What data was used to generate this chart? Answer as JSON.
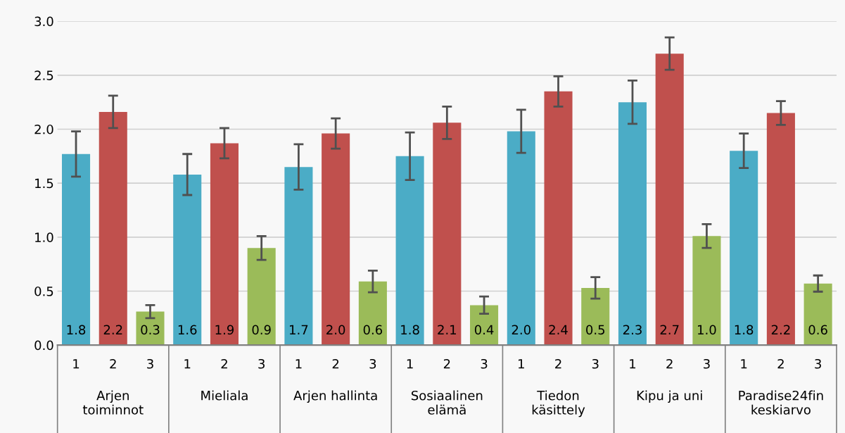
{
  "chart_data": {
    "type": "bar",
    "categories": [
      "1",
      "2",
      "3",
      "1",
      "2",
      "3",
      "1",
      "2",
      "3",
      "1",
      "2",
      "3",
      "1",
      "2",
      "3",
      "1",
      "2",
      "3",
      "1",
      "2",
      "3"
    ],
    "values": [
      1.77,
      2.16,
      0.31,
      1.58,
      1.87,
      0.9,
      1.65,
      1.96,
      0.59,
      1.75,
      2.06,
      0.37,
      1.98,
      2.35,
      0.53,
      2.25,
      2.7,
      1.01,
      1.8,
      2.15,
      0.57
    ],
    "colors": [
      "#4bacc6",
      "#c0504d",
      "#9bbb59",
      "#4bacc6",
      "#c0504d",
      "#9bbb59",
      "#4bacc6",
      "#c0504d",
      "#9bbb59",
      "#4bacc6",
      "#c0504d",
      "#9bbb59",
      "#4bacc6",
      "#c0504d",
      "#9bbb59",
      "#4bacc6",
      "#c0504d",
      "#9bbb59",
      "#4bacc6",
      "#c0504d",
      "#9bbb59"
    ],
    "errors": [
      0.21,
      0.15,
      0.06,
      0.19,
      0.14,
      0.11,
      0.21,
      0.14,
      0.1,
      0.22,
      0.15,
      0.08,
      0.2,
      0.14,
      0.1,
      0.2,
      0.15,
      0.11,
      0.16,
      0.11,
      0.075
    ],
    "value_labels": [
      "1.8",
      "2.2",
      "0.3",
      "1.6",
      "1.9",
      "0.9",
      "1.7",
      "2.0",
      "0.6",
      "1.8",
      "2.1",
      "0.4",
      "2.0",
      "2.4",
      "0.5",
      "2.3",
      "2.7",
      "1.0",
      "1.8",
      "2.2",
      "0.6"
    ],
    "annotations": [
      "Arjen\ntoiminnot",
      "Mieliala",
      "Arjen hallinta",
      "Sosiaalinen\nelämä",
      "Tiedon\nkäsittely",
      "Kipu ja uni",
      "Paradise24fin\nkeskiarvo"
    ],
    "ylim": [
      0,
      3.0
    ],
    "yticks": [
      {
        "value": 0,
        "label": "0.0"
      },
      {
        "value": 0.5,
        "label": "0.5"
      },
      {
        "value": 1.0,
        "label": "1.0"
      },
      {
        "value": 1.5,
        "label": "1.5"
      },
      {
        "value": 2.0,
        "label": "2.0"
      },
      {
        "value": 2.5,
        "label": "2.5"
      },
      {
        "value": 3.0,
        "label": "3.0"
      }
    ],
    "grid": "y",
    "legend": false
  }
}
